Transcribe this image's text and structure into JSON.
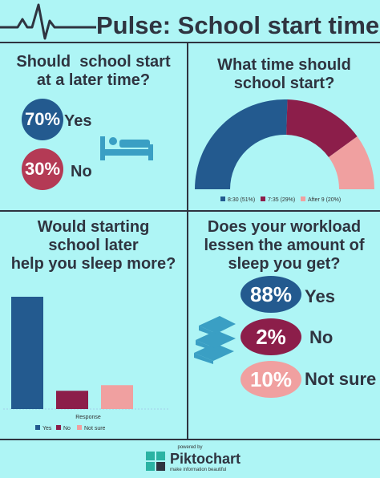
{
  "header": {
    "title": "Pulse: School start time"
  },
  "q1": {
    "question_line1": "Should  school start",
    "question_line2": "at a later time?",
    "yes_pct": "70%",
    "yes_label": "Yes",
    "no_pct": "30%",
    "no_label": "No"
  },
  "q2": {
    "question_line1": "What time should",
    "question_line2": "school start?"
  },
  "q3": {
    "question_line1": "Would starting",
    "question_line2": "school later",
    "question_line3": "help you sleep more?"
  },
  "q4": {
    "question_line1": "Does your workload",
    "question_line2": "lessen the amount of",
    "question_line3": "sleep you get?",
    "yes_pct": "88%",
    "yes_label": "Yes",
    "no_pct": "2%",
    "no_label": "No",
    "notsure_pct": "10%",
    "notsure_label": "Not sure"
  },
  "colors": {
    "blue": "#235a8f",
    "maroon": "#8c1e4a",
    "pink": "#f0a0a0",
    "red_circle": "#b43a55",
    "icon": "#3a9fc4"
  },
  "icons": {
    "q1": "bed-icon",
    "q4": "books-icon",
    "header": "pulse-line-icon"
  },
  "chart_data": [
    {
      "type": "pie",
      "variant": "half-donut",
      "categories": [
        "8:30 (51%)",
        "7:35 (29%)",
        "After 9 (20%)"
      ],
      "values": [
        51,
        29,
        20
      ],
      "colors": [
        "#235a8f",
        "#8c1e4a",
        "#f0a0a0"
      ],
      "legend_position": "bottom"
    },
    {
      "type": "bar",
      "categories": [
        "Yes",
        "No",
        "Not sure"
      ],
      "values": [
        80,
        13,
        17
      ],
      "colors": [
        "#235a8f",
        "#8c1e4a",
        "#f0a0a0"
      ],
      "xlabel": "Response",
      "ylim": [
        0,
        100
      ],
      "legend_position": "bottom"
    }
  ],
  "footer": {
    "powered": "powered by",
    "brand": "Piktochart",
    "tagline": "make information beautiful"
  }
}
